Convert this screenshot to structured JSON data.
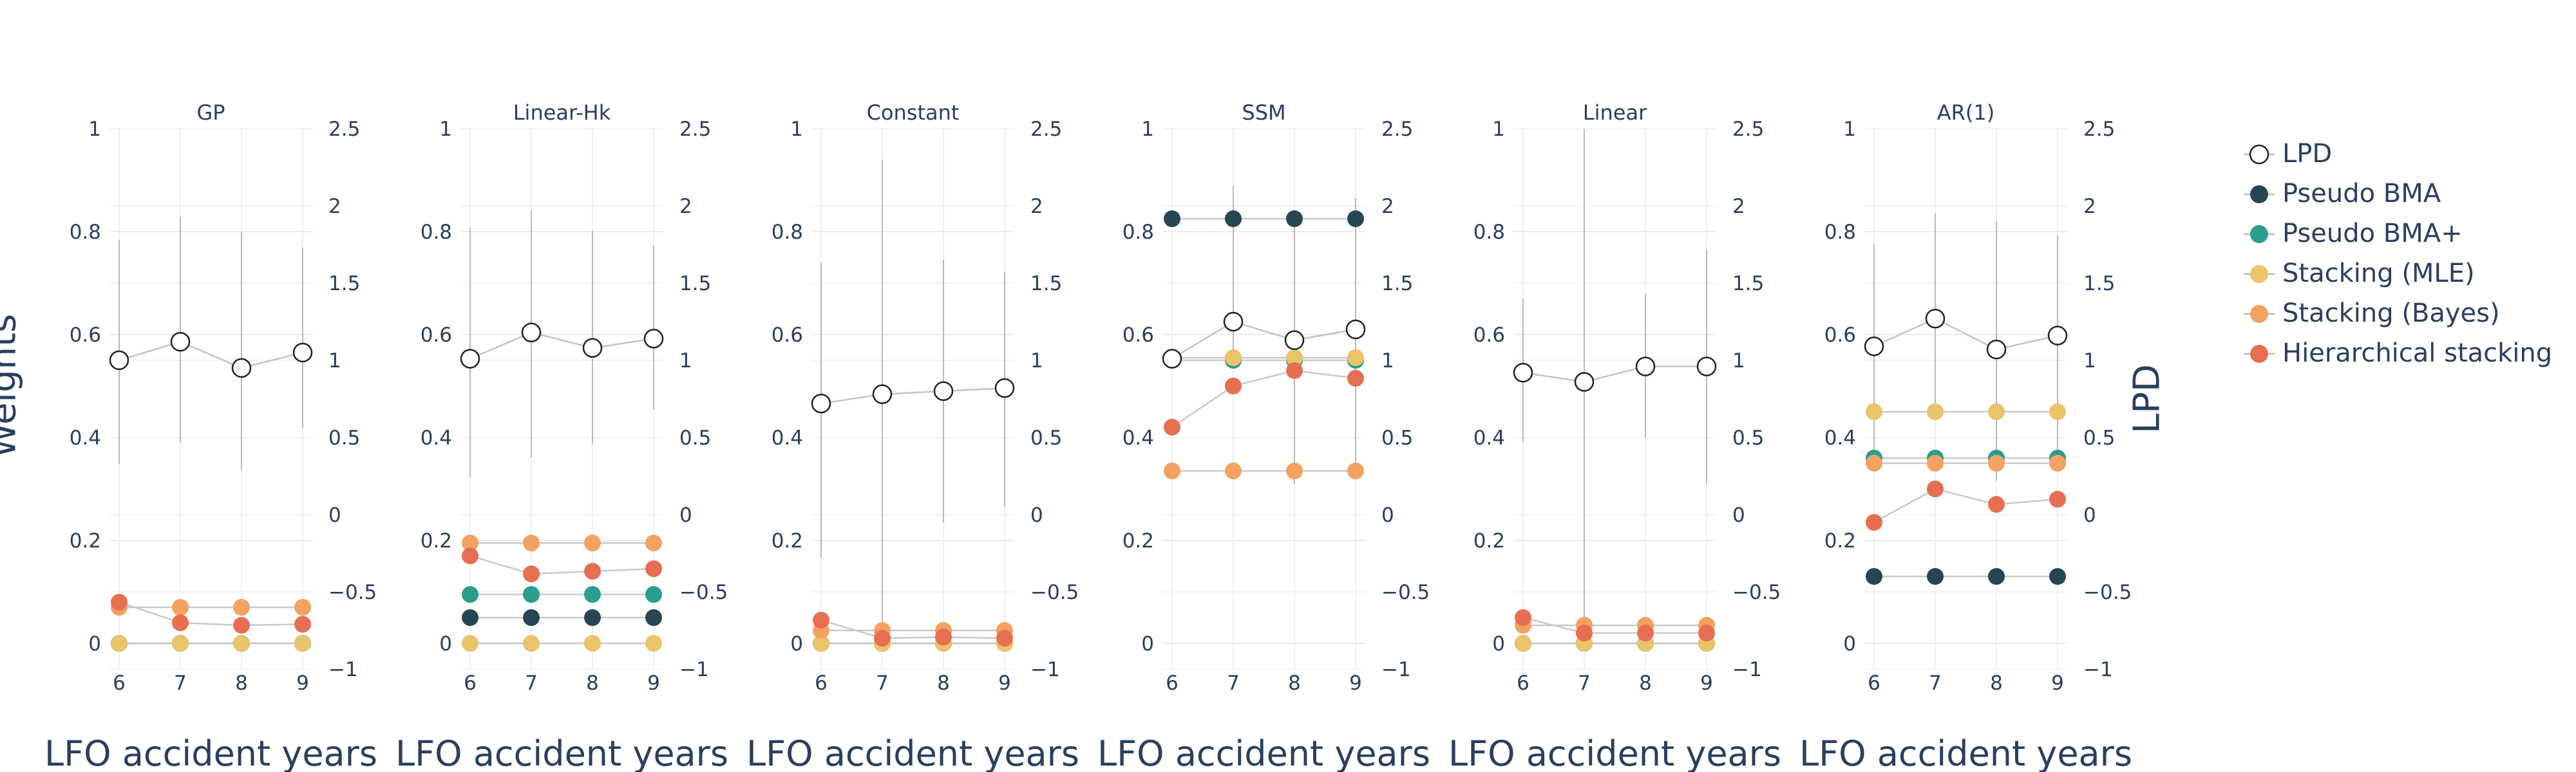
{
  "y_label_left": "Weights",
  "y_label_right": "LPD",
  "x_axis_label": "LFO accident years",
  "legend": [
    {
      "name": "LPD",
      "color": "#000000",
      "style": "open-circle"
    },
    {
      "name": "Pseudo BMA",
      "color": "#264653"
    },
    {
      "name": "Pseudo BMA+",
      "color": "#2a9d8f"
    },
    {
      "name": "Stacking (MLE)",
      "color": "#e9c46a"
    },
    {
      "name": "Stacking (Bayes)",
      "color": "#f4a261"
    },
    {
      "name": "Hierarchical stacking",
      "color": "#e76f51"
    }
  ],
  "chart_data": {
    "type": "line",
    "x": [
      6,
      7,
      8,
      9
    ],
    "left_axis": {
      "label": "Weights",
      "range": [
        0,
        1
      ],
      "ticks": [
        "0",
        "0.2",
        "0.4",
        "0.6",
        "0.8",
        "1"
      ]
    },
    "right_axis": {
      "label": "LPD",
      "range": [
        -1,
        2.5
      ],
      "ticks": [
        "−1",
        "−0.5",
        "0",
        "0.5",
        "1",
        "1.5",
        "2",
        "2.5"
      ]
    },
    "x_ticks": [
      "6",
      "7",
      "8",
      "9"
    ],
    "grid": true,
    "legend_placement": "right",
    "panels": [
      {
        "title": "GP",
        "lpd": [
          1.0,
          1.12,
          0.95,
          1.05
        ],
        "lpd_interval": [
          [
            0.33,
            1.78
          ],
          [
            0.47,
            1.93
          ],
          [
            0.29,
            1.83
          ],
          [
            0.56,
            1.73
          ]
        ],
        "series": [
          {
            "name": "Pseudo BMA",
            "values": [
              0,
              0,
              0,
              0
            ]
          },
          {
            "name": "Pseudo BMA+",
            "values": [
              0,
              0,
              0,
              0
            ]
          },
          {
            "name": "Stacking (MLE)",
            "values": [
              0,
              0,
              0,
              0
            ]
          },
          {
            "name": "Stacking (Bayes)",
            "values": [
              0.07,
              0.07,
              0.07,
              0.07
            ]
          },
          {
            "name": "Hierarchical stacking",
            "values": [
              0.08,
              0.04,
              0.035,
              0.037
            ]
          }
        ]
      },
      {
        "title": "Linear-Hk",
        "lpd": [
          1.01,
          1.18,
          1.08,
          1.14
        ],
        "lpd_interval": [
          [
            0.24,
            1.86
          ],
          [
            0.37,
            1.97
          ],
          [
            0.46,
            1.84
          ],
          [
            0.68,
            1.74
          ]
        ],
        "series": [
          {
            "name": "Pseudo BMA",
            "values": [
              0.05,
              0.05,
              0.05,
              0.05
            ]
          },
          {
            "name": "Pseudo BMA+",
            "values": [
              0.095,
              0.095,
              0.095,
              0.095
            ]
          },
          {
            "name": "Stacking (MLE)",
            "values": [
              0,
              0,
              0,
              0
            ]
          },
          {
            "name": "Stacking (Bayes)",
            "values": [
              0.195,
              0.195,
              0.195,
              0.195
            ]
          },
          {
            "name": "Hierarchical stacking",
            "values": [
              0.17,
              0.135,
              0.14,
              0.145
            ]
          }
        ]
      },
      {
        "title": "Constant",
        "lpd": [
          0.72,
          0.78,
          0.8,
          0.82
        ],
        "lpd_interval": [
          [
            -0.28,
            1.63
          ],
          [
            -0.85,
            2.3
          ],
          [
            -0.05,
            1.65
          ],
          [
            0.05,
            1.57
          ]
        ],
        "series": [
          {
            "name": "Pseudo BMA",
            "values": [
              0,
              0,
              0,
              0
            ]
          },
          {
            "name": "Pseudo BMA+",
            "values": [
              0,
              0,
              0,
              0
            ]
          },
          {
            "name": "Stacking (MLE)",
            "values": [
              0,
              0,
              0,
              0
            ]
          },
          {
            "name": "Stacking (Bayes)",
            "values": [
              0.025,
              0.025,
              0.025,
              0.025
            ]
          },
          {
            "name": "Hierarchical stacking",
            "values": [
              0.045,
              0.01,
              0.012,
              0.01
            ]
          }
        ]
      },
      {
        "title": "SSM",
        "lpd": [
          1.01,
          1.25,
          1.13,
          1.2
        ],
        "lpd_interval": [
          [
            1.01,
            1.01
          ],
          [
            0.95,
            2.13
          ],
          [
            0.2,
            1.95
          ],
          [
            0.34,
            2.05
          ]
        ],
        "series": [
          {
            "name": "Pseudo BMA",
            "values": [
              0.825,
              0.825,
              0.825,
              0.825
            ]
          },
          {
            "name": "Pseudo BMA+",
            "values": [
              0.55,
              0.55,
              0.55,
              0.55
            ]
          },
          {
            "name": "Stacking (MLE)",
            "values": [
              0.555,
              0.555,
              0.555,
              0.555
            ]
          },
          {
            "name": "Stacking (Bayes)",
            "values": [
              0.335,
              0.335,
              0.335,
              0.335
            ]
          },
          {
            "name": "Hierarchical stacking",
            "values": [
              0.42,
              0.5,
              0.53,
              0.515
            ]
          }
        ]
      },
      {
        "title": "Linear",
        "lpd": [
          0.92,
          0.86,
          0.96,
          0.96
        ],
        "lpd_interval": [
          [
            0.47,
            1.4
          ],
          [
            -0.8,
            2.5
          ],
          [
            0.5,
            1.43
          ],
          [
            0.2,
            1.72
          ]
        ],
        "series": [
          {
            "name": "Pseudo BMA",
            "values": [
              0,
              0,
              0,
              0
            ]
          },
          {
            "name": "Pseudo BMA+",
            "values": [
              0,
              0,
              0,
              0
            ]
          },
          {
            "name": "Stacking (MLE)",
            "values": [
              0,
              0,
              0,
              0
            ]
          },
          {
            "name": "Stacking (Bayes)",
            "values": [
              0.035,
              0.035,
              0.035,
              0.035
            ]
          },
          {
            "name": "Hierarchical stacking",
            "values": [
              0.05,
              0.02,
              0.02,
              0.02
            ]
          }
        ]
      },
      {
        "title": "AR(1)",
        "lpd": [
          1.09,
          1.27,
          1.07,
          1.16
        ],
        "lpd_interval": [
          [
            0.36,
            1.75
          ],
          [
            0.7,
            1.95
          ],
          [
            0.22,
            1.9
          ],
          [
            0.32,
            1.81
          ]
        ],
        "series": [
          {
            "name": "Pseudo BMA",
            "values": [
              0.13,
              0.13,
              0.13,
              0.13
            ]
          },
          {
            "name": "Pseudo BMA+",
            "values": [
              0.36,
              0.36,
              0.36,
              0.36
            ]
          },
          {
            "name": "Stacking (MLE)",
            "values": [
              0.45,
              0.45,
              0.45,
              0.45
            ]
          },
          {
            "name": "Stacking (Bayes)",
            "values": [
              0.35,
              0.35,
              0.35,
              0.35
            ]
          },
          {
            "name": "Hierarchical stacking",
            "values": [
              0.235,
              0.3,
              0.27,
              0.28
            ]
          }
        ]
      }
    ]
  }
}
